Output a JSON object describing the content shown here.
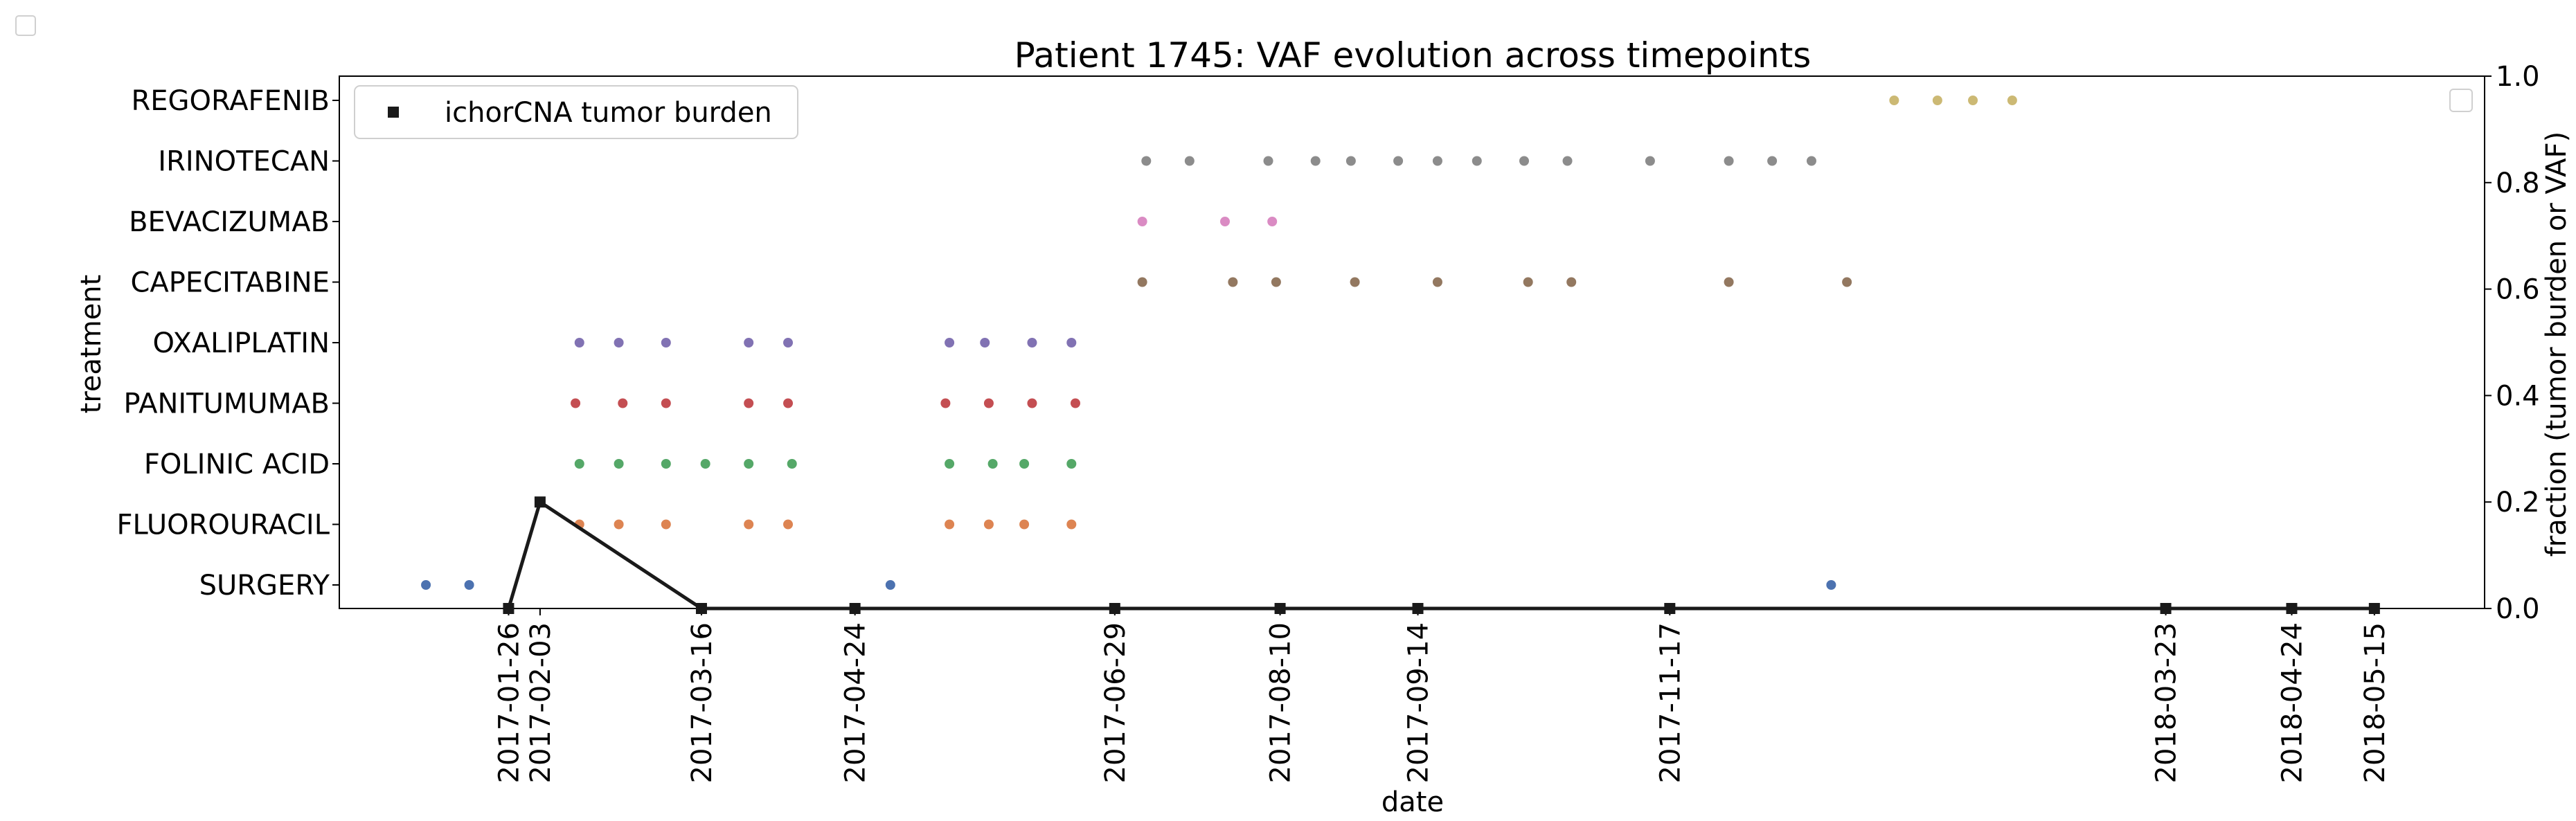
{
  "chart_data": {
    "type": "scatter",
    "title": "Patient 1745: VAF evolution across timepoints",
    "xlabel": "date",
    "ylabel": "treatment",
    "ylabel_right": "fraction (tumor burden or VAF)",
    "treatments": [
      "SURGERY",
      "FLUOROURACIL",
      "FOLINIC ACID",
      "PANITUMUMAB",
      "OXALIPLATIN",
      "CAPECITABINE",
      "BEVACIZUMAB",
      "IRINOTECAN",
      "REGORAFENIB"
    ],
    "xlim": [
      "2016-12-14",
      "2018-06-12"
    ],
    "y2lim": [
      0.0,
      1.0
    ],
    "y2ticks": [
      "0.0",
      "0.2",
      "0.4",
      "0.6",
      "0.8",
      "1.0"
    ],
    "xtick_labels": [
      "2017-01-26",
      "2017-02-03",
      "2017-03-16",
      "2017-04-24",
      "2017-06-29",
      "2017-08-10",
      "2017-09-14",
      "2017-11-17",
      "2018-03-23",
      "2018-04-24",
      "2018-05-15"
    ],
    "legend": {
      "label": "ichorCNA tumor burden",
      "position": "top-left"
    },
    "colors": {
      "SURGERY": "#4c72b0",
      "FLUOROURACIL": "#dd8452",
      "FOLINIC ACID": "#55a868",
      "PANITUMUMAB": "#c44e52",
      "OXALIPLATIN": "#8172b3",
      "CAPECITABINE": "#937860",
      "BEVACIZUMAB": "#da8bc3",
      "IRINOTECAN": "#8c8c8c",
      "REGORAFENIB": "#ccb974",
      "tumor_burden": "#1a1a1a"
    },
    "series": [
      {
        "treatment": "SURGERY",
        "dates": [
          "2017-01-05",
          "2017-01-16",
          "2017-05-03",
          "2017-12-28"
        ]
      },
      {
        "treatment": "FLUOROURACIL",
        "dates": [
          "2017-02-13",
          "2017-02-23",
          "2017-03-07",
          "2017-03-28",
          "2017-04-07",
          "2017-05-18",
          "2017-05-28",
          "2017-06-06",
          "2017-06-18"
        ]
      },
      {
        "treatment": "FOLINIC ACID",
        "dates": [
          "2017-02-13",
          "2017-02-23",
          "2017-03-07",
          "2017-03-17",
          "2017-03-28",
          "2017-04-08",
          "2017-05-18",
          "2017-05-29",
          "2017-06-06",
          "2017-06-18"
        ]
      },
      {
        "treatment": "PANITUMUMAB",
        "dates": [
          "2017-02-12",
          "2017-02-24",
          "2017-03-07",
          "2017-03-28",
          "2017-04-07",
          "2017-05-17",
          "2017-05-28",
          "2017-06-08",
          "2017-06-19"
        ]
      },
      {
        "treatment": "OXALIPLATIN",
        "dates": [
          "2017-02-13",
          "2017-02-23",
          "2017-03-07",
          "2017-03-28",
          "2017-04-07",
          "2017-05-18",
          "2017-05-27",
          "2017-06-08",
          "2017-06-18"
        ]
      },
      {
        "treatment": "CAPECITABINE",
        "dates": [
          "2017-07-06",
          "2017-07-29",
          "2017-08-09",
          "2017-08-29",
          "2017-09-19",
          "2017-10-12",
          "2017-10-23",
          "2017-12-02",
          "2018-01-01"
        ]
      },
      {
        "treatment": "BEVACIZUMAB",
        "dates": [
          "2017-07-06",
          "2017-07-27",
          "2017-08-08"
        ]
      },
      {
        "treatment": "IRINOTECAN",
        "dates": [
          "2017-07-07",
          "2017-07-18",
          "2017-08-07",
          "2017-08-19",
          "2017-08-28",
          "2017-09-09",
          "2017-09-19",
          "2017-09-29",
          "2017-10-11",
          "2017-10-22",
          "2017-11-12",
          "2017-12-02",
          "2017-12-13",
          "2017-12-23"
        ]
      },
      {
        "treatment": "REGORAFENIB",
        "dates": [
          "2018-01-13",
          "2018-01-24",
          "2018-02-02",
          "2018-02-12"
        ]
      }
    ],
    "tumor_burden": [
      {
        "date": "2017-01-26",
        "value": 0.0
      },
      {
        "date": "2017-02-03",
        "value": 0.2
      },
      {
        "date": "2017-03-16",
        "value": 0.0
      },
      {
        "date": "2017-04-24",
        "value": 0.0
      },
      {
        "date": "2017-06-29",
        "value": 0.0
      },
      {
        "date": "2017-08-10",
        "value": 0.0
      },
      {
        "date": "2017-09-14",
        "value": 0.0
      },
      {
        "date": "2017-11-17",
        "value": 0.0
      },
      {
        "date": "2018-03-23",
        "value": 0.0
      },
      {
        "date": "2018-04-24",
        "value": 0.0
      },
      {
        "date": "2018-05-15",
        "value": 0.0
      }
    ]
  }
}
